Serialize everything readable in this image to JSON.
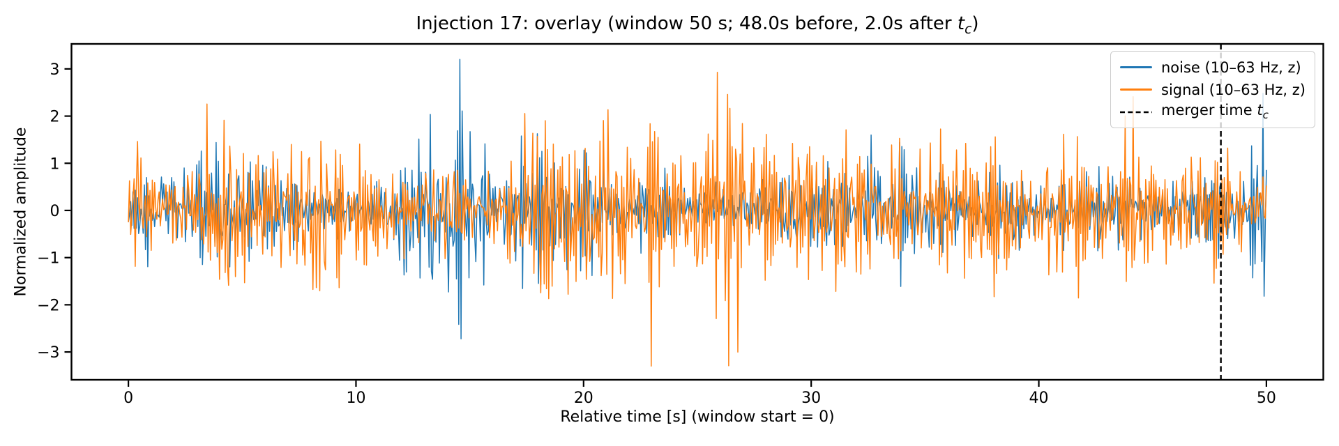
{
  "chart_data": {
    "type": "line",
    "title": "Injection 17: overlay (window 50 s; 48.0s before, 2.0s after t_c)",
    "title_parts": {
      "prefix": "Injection 17: overlay (window 50 s; 48.0s before, 2.0s after ",
      "math_var": "t",
      "math_sub": "c",
      "suffix": ")"
    },
    "xlabel": "Relative time [s] (window start = 0)",
    "ylabel": "Normalized amplitude",
    "xlim": [
      -2.5,
      52.5
    ],
    "ylim": [
      -3.59,
      3.53
    ],
    "xticks": [
      0,
      10,
      20,
      30,
      40,
      50
    ],
    "yticks": [
      -3,
      -2,
      -1,
      0,
      1,
      2,
      3
    ],
    "grid": false,
    "background": "#ffffff",
    "axis_color": "#000000",
    "window_seconds": 50,
    "seconds_before_tc": 48.0,
    "seconds_after_tc": 2.0,
    "series": [
      {
        "name": "noise (10–63 Hz, z)",
        "color": "#1f77b4",
        "kind": "band-limited gaussian noise, z-scored",
        "x_start": 0,
        "x_end": 50,
        "n_points": 1000,
        "seed": 1337,
        "ar_coef": -0.58,
        "env_step": 40,
        "env_gain": 0.32,
        "std": 1.0,
        "peak_abs": 3.2
      },
      {
        "name": "signal (10–63 Hz, z)",
        "color": "#ff7f0e",
        "kind": "band-limited gaussian noise, z-scored",
        "x_start": 0,
        "x_end": 50,
        "n_points": 1000,
        "seed": 4242,
        "ar_coef": -0.58,
        "env_step": 40,
        "env_gain": 0.32,
        "std": 1.0,
        "peak_abs": 3.3
      }
    ],
    "vline": {
      "x": 48.0,
      "color": "#000000",
      "style": "dashed",
      "label_prefix": "merger time ",
      "math_var": "t",
      "math_sub": "c"
    },
    "legend": {
      "position": "upper right",
      "items": [
        {
          "label": "noise (10–63 Hz, z)",
          "swatch": "line",
          "color": "#1f77b4"
        },
        {
          "label": "signal (10–63 Hz, z)",
          "swatch": "line",
          "color": "#ff7f0e"
        },
        {
          "label_prefix": "merger time ",
          "math_var": "t",
          "math_sub": "c",
          "swatch": "dashed-line",
          "color": "#000000"
        }
      ]
    }
  }
}
